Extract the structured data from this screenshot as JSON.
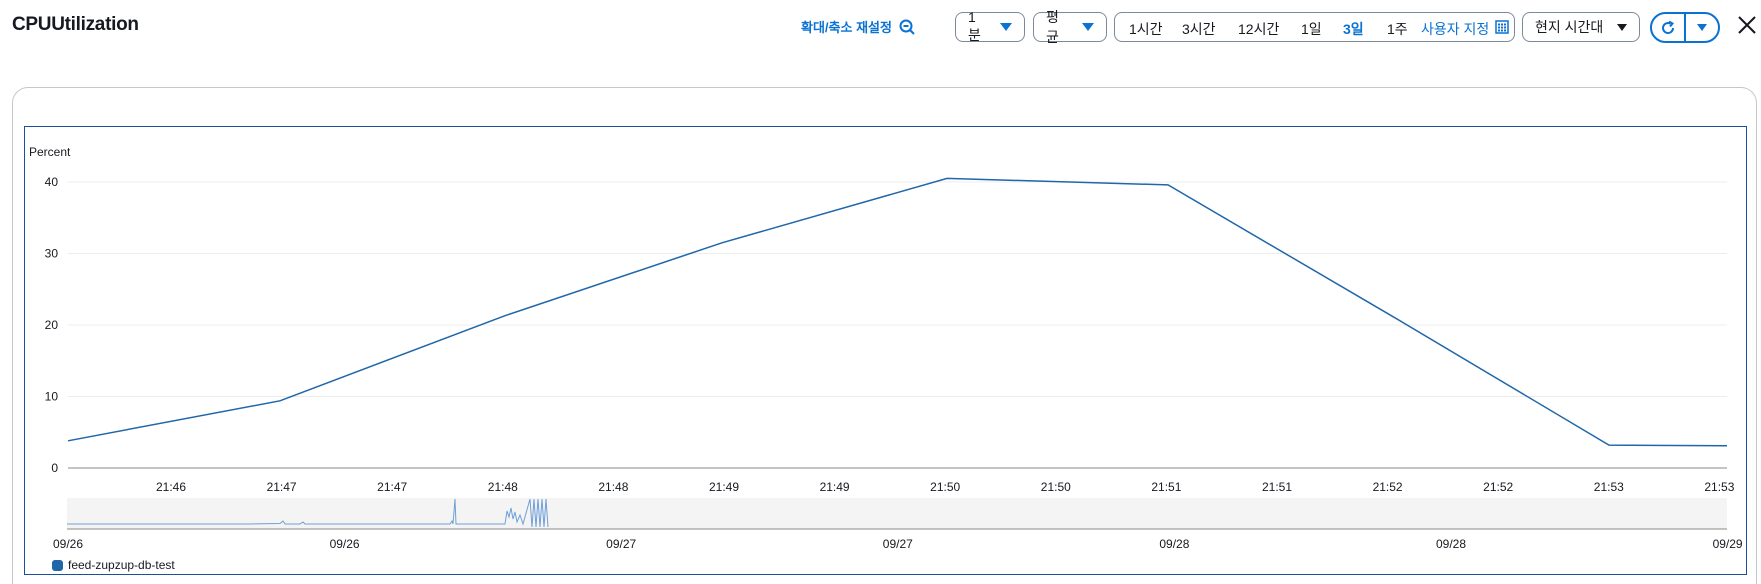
{
  "header": {
    "title": "CPUUtilization",
    "reset_zoom": "확대/축소 재설정",
    "period": "1분",
    "statistic": "평균",
    "ranges": [
      "1시간",
      "3시간",
      "12시간",
      "1일",
      "3일",
      "1주"
    ],
    "selected_range": "3일",
    "custom_range": "사용자 지정",
    "timezone": "현지 시간대"
  },
  "colors": {
    "accent": "#0972d3",
    "series": "#1f67a9",
    "frame": "#1a4f9c"
  },
  "chart_data": {
    "type": "line",
    "ylabel": "Percent",
    "ylim": [
      0,
      40
    ],
    "yticks": [
      0,
      10,
      20,
      30,
      40
    ],
    "grid": true,
    "x_tick_labels": [
      "21:46",
      "21:47",
      "21:47",
      "21:48",
      "21:48",
      "21:49",
      "21:49",
      "21:50",
      "21:50",
      "21:51",
      "21:51",
      "21:52",
      "21:52",
      "21:53",
      "21:53"
    ],
    "series": [
      {
        "name": "feed-zupzup-db-test",
        "x": [
          "21:45",
          "21:47",
          "21:48",
          "21:49",
          "21:50",
          "21:51",
          "21:52",
          "21:53",
          "21:53"
        ],
        "values": [
          3.8,
          9.4,
          21.3,
          31.5,
          40.5,
          39.6,
          21.5,
          3.2,
          3.1
        ]
      }
    ],
    "overview": {
      "x_tick_labels": [
        "09/26",
        "09/26",
        "09/27",
        "09/27",
        "09/28",
        "09/28",
        "09/29"
      ]
    },
    "legend_position": "bottom-left"
  }
}
